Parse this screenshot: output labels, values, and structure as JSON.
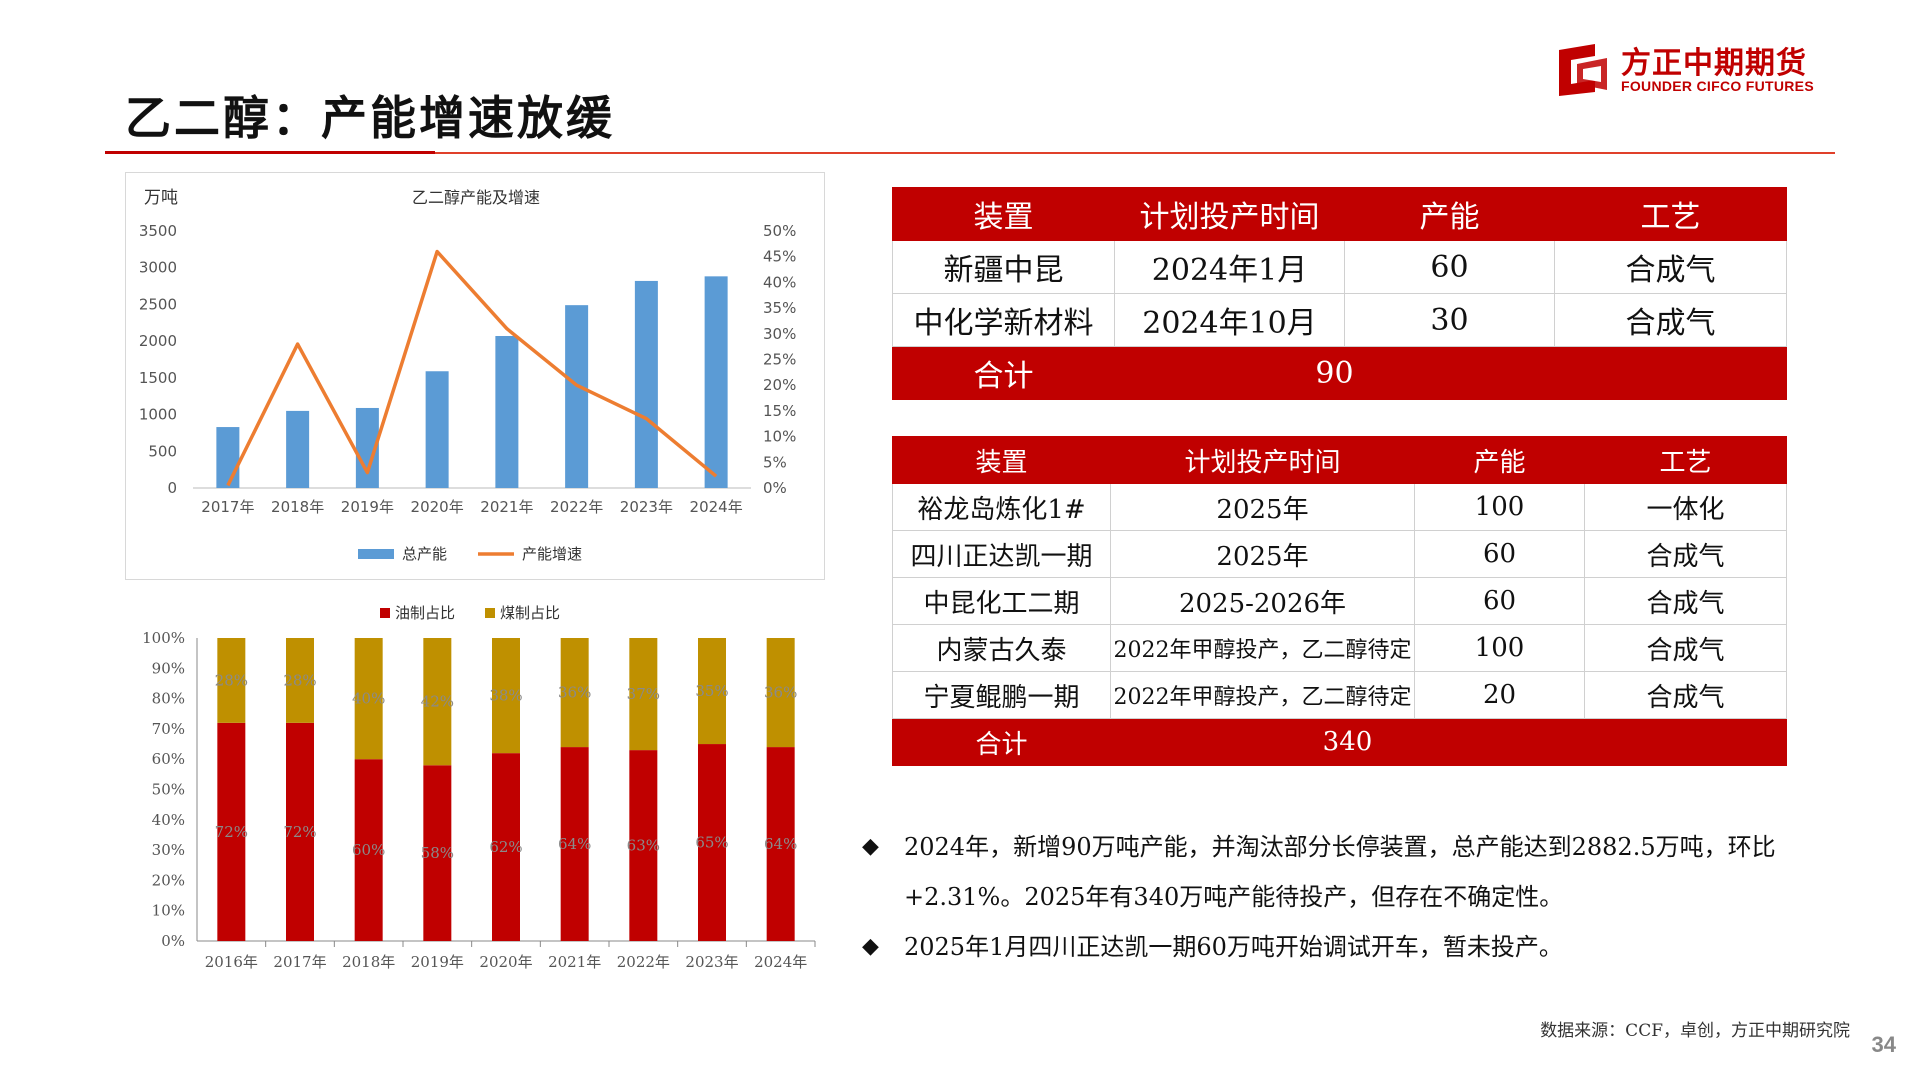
{
  "page": {
    "title": "乙二醇：产能增速放缓",
    "page_number": "34",
    "source": "数据来源：CCF，卓创，方正中期研究院"
  },
  "logo": {
    "cn": "方正中期期货",
    "en": "FOUNDER CIFCO FUTURES",
    "icon": "founder-logo-icon",
    "color": "#c00000"
  },
  "chart_data": [
    {
      "type": "bar",
      "title": "乙二醇产能及增速",
      "ylabel": "万吨",
      "categories": [
        "2017年",
        "2018年",
        "2019年",
        "2020年",
        "2021年",
        "2022年",
        "2023年",
        "2024年"
      ],
      "ylim": [
        0,
        3500
      ],
      "yticks": [
        "0",
        "500",
        "1000",
        "1500",
        "2000",
        "2500",
        "3000",
        "3500"
      ],
      "y2lim": [
        0,
        50
      ],
      "y2ticks": [
        "0%",
        "5%",
        "10%",
        "15%",
        "20%",
        "25%",
        "30%",
        "35%",
        "40%",
        "45%",
        "50%"
      ],
      "legend_position": "bottom",
      "series": [
        {
          "name": "总产能",
          "kind": "bar",
          "axis": "left",
          "color": "#5b9bd5",
          "values": [
            830,
            1050,
            1090,
            1590,
            2070,
            2490,
            2820,
            2882.5
          ]
        },
        {
          "name": "产能增速",
          "kind": "line",
          "axis": "right",
          "color": "#ed7d31",
          "values": [
            0.5,
            28,
            3,
            46,
            31,
            20,
            13.5,
            2.3
          ]
        }
      ]
    },
    {
      "type": "bar",
      "stacked": true,
      "categories": [
        "2016年",
        "2017年",
        "2018年",
        "2019年",
        "2020年",
        "2021年",
        "2022年",
        "2023年",
        "2024年"
      ],
      "ylim": [
        0,
        100
      ],
      "yticks": [
        "0%",
        "10%",
        "20%",
        "30%",
        "40%",
        "50%",
        "60%",
        "70%",
        "80%",
        "90%",
        "100%"
      ],
      "legend_position": "top",
      "series": [
        {
          "name": "油制占比",
          "color": "#c00000",
          "values": [
            72,
            72,
            60,
            58,
            62,
            64,
            63,
            65,
            64
          ],
          "labels": [
            "72%",
            "72%",
            "60%",
            "58%",
            "62%",
            "64%",
            "63%",
            "65%",
            "64%"
          ]
        },
        {
          "name": "煤制占比",
          "color": "#bf9000",
          "values": [
            28,
            28,
            40,
            42,
            38,
            36,
            37,
            35,
            36
          ],
          "labels": [
            "28%",
            "28%",
            "40%",
            "42%",
            "38%",
            "36%",
            "37%",
            "35%",
            "36%"
          ]
        }
      ]
    }
  ],
  "table1": {
    "headers": [
      "装置",
      "计划投产时间",
      "产能",
      "工艺"
    ],
    "rows": [
      [
        "新疆中昆",
        "2024年1月",
        "60",
        "合成气"
      ],
      [
        "中化学新材料",
        "2024年10月",
        "30",
        "合成气"
      ]
    ],
    "total_label": "合计",
    "total_value": "90"
  },
  "table2": {
    "headers": [
      "装置",
      "计划投产时间",
      "产能",
      "工艺"
    ],
    "rows": [
      [
        "裕龙岛炼化1#",
        "2025年",
        "100",
        "一体化"
      ],
      [
        "四川正达凯一期",
        "2025年",
        "60",
        "合成气"
      ],
      [
        "中昆化工二期",
        "2025-2026年",
        "60",
        "合成气"
      ],
      [
        "内蒙古久泰",
        "2022年甲醇投产，乙二醇待定",
        "100",
        "合成气"
      ],
      [
        "宁夏鲲鹏一期",
        "2022年甲醇投产，乙二醇待定",
        "20",
        "合成气"
      ]
    ],
    "total_label": "合计",
    "total_value": "340"
  },
  "bullets": [
    {
      "icon": "diamond-bullet-icon",
      "marker": "◆",
      "text": "2024年，新增90万吨产能，并淘汰部分长停装置，总产能达到2882.5万吨，环比+2.31%。2025年有340万吨产能待投产，但存在不确定性。"
    },
    {
      "icon": "diamond-bullet-icon",
      "marker": "◆",
      "text": "2025年1月四川正达凯一期60万吨开始调试开车，暂未投产。"
    }
  ]
}
